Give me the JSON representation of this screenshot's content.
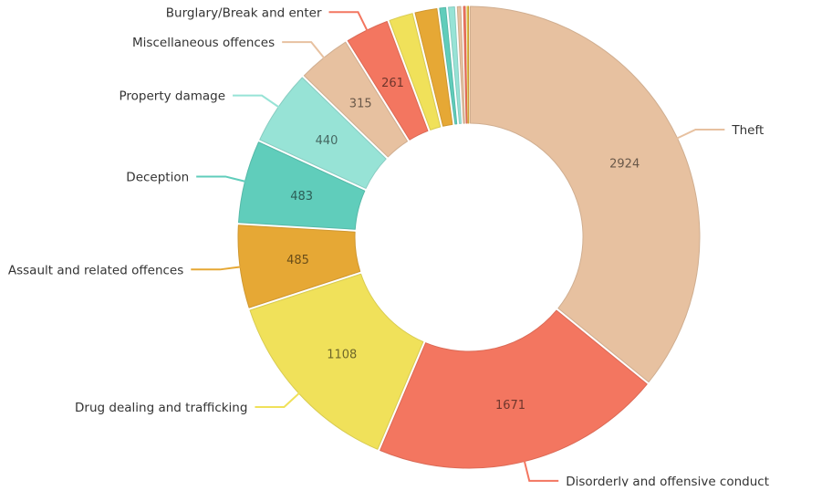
{
  "chart_data": {
    "type": "pie",
    "variant": "donut",
    "legend": "none",
    "grid": false,
    "slices": [
      {
        "name": "Theft",
        "value": 2924,
        "color": "#e7c1a0",
        "value_label": "2924"
      },
      {
        "name": "Disorderly and offensive conduct",
        "value": 1671,
        "color": "#f37660",
        "value_label": "1671"
      },
      {
        "name": "Drug dealing and trafficking",
        "value": 1108,
        "color": "#f0e15a",
        "value_label": "1108"
      },
      {
        "name": "Assault and related offences",
        "value": 485,
        "color": "#e6a835",
        "value_label": "485"
      },
      {
        "name": "Deception",
        "value": 483,
        "color": "#60cdbb",
        "value_label": "483"
      },
      {
        "name": "Property damage",
        "value": 440,
        "color": "#97e3d6",
        "value_label": "440"
      },
      {
        "name": "Miscellaneous offences",
        "value": 315,
        "color": "#e7c1a0",
        "value_label": "315"
      },
      {
        "name": "Burglary/Break and enter",
        "value": 261,
        "color": "#f37660",
        "value_label": "261"
      },
      {
        "name": "",
        "value": 150,
        "color": "#f0e15a",
        "value_label": ""
      },
      {
        "name": "",
        "value": 140,
        "color": "#e6a835",
        "value_label": ""
      },
      {
        "name": "",
        "value": 50,
        "color": "#60cdbb",
        "value_label": ""
      },
      {
        "name": "",
        "value": 50,
        "color": "#97e3d6",
        "value_label": ""
      },
      {
        "name": "",
        "value": 35,
        "color": "#e7c1a0",
        "value_label": ""
      },
      {
        "name": "",
        "value": 25,
        "color": "#f37660",
        "value_label": ""
      },
      {
        "name": "",
        "value": 8,
        "color": "#f0e15a",
        "value_label": ""
      },
      {
        "name": "",
        "value": 5,
        "color": "#e6a835",
        "value_label": ""
      }
    ]
  }
}
